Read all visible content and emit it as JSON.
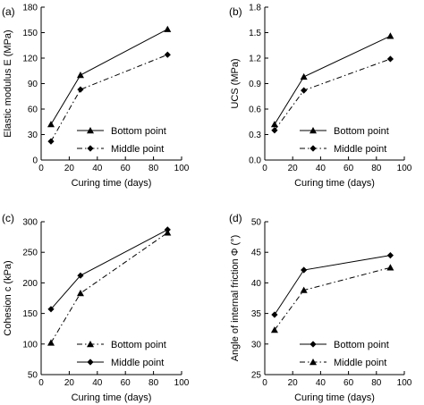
{
  "chart_data": [
    {
      "type": "line",
      "panel_label": "(a)",
      "xlabel": "Curing time (days)",
      "ylabel": "Elastic modulus E (MPa)",
      "xlim": [
        0,
        100
      ],
      "ylim": [
        0,
        180
      ],
      "xticks": [
        0,
        20,
        40,
        60,
        80,
        100
      ],
      "yticks": [
        0,
        30,
        60,
        90,
        120,
        150,
        180
      ],
      "ytick_labels": [
        "0",
        "30",
        "60",
        "90",
        "120",
        "150",
        "180"
      ],
      "legend_position": "bottom-right",
      "series": [
        {
          "name": "Bottom point",
          "marker": "triangle",
          "line": "solid",
          "x": [
            7,
            28,
            90
          ],
          "y": [
            42,
            100,
            154
          ]
        },
        {
          "name": "Middle point",
          "marker": "diamond",
          "line": "dashdot",
          "x": [
            7,
            28,
            90
          ],
          "y": [
            22,
            83,
            124
          ]
        }
      ]
    },
    {
      "type": "line",
      "panel_label": "(b)",
      "xlabel": "Curing time (days)",
      "ylabel": "UCS (MPa)",
      "xlim": [
        0,
        100
      ],
      "ylim": [
        0,
        1.8
      ],
      "xticks": [
        0,
        20,
        40,
        60,
        80,
        100
      ],
      "yticks": [
        0,
        0.3,
        0.6,
        0.9,
        1.2,
        1.5,
        1.8
      ],
      "ytick_labels": [
        "0.0",
        "0.3",
        "0.6",
        "0.9",
        "1.2",
        "1.5",
        "1.8"
      ],
      "legend_position": "bottom-right",
      "series": [
        {
          "name": "Bottom point",
          "marker": "triangle",
          "line": "solid",
          "x": [
            7,
            28,
            90
          ],
          "y": [
            0.42,
            0.98,
            1.46
          ]
        },
        {
          "name": "Middle point",
          "marker": "diamond",
          "line": "dashdot",
          "x": [
            7,
            28,
            90
          ],
          "y": [
            0.35,
            0.82,
            1.19
          ]
        }
      ]
    },
    {
      "type": "line",
      "panel_label": "(c)",
      "xlabel": "Curing time (days)",
      "ylabel": "Cohesion c (kPa)",
      "xlim": [
        0,
        100
      ],
      "ylim": [
        50,
        300
      ],
      "xticks": [
        0,
        20,
        40,
        60,
        80,
        100
      ],
      "yticks": [
        50,
        100,
        150,
        200,
        250,
        300
      ],
      "ytick_labels": [
        "50",
        "100",
        "150",
        "200",
        "250",
        "300"
      ],
      "legend_position": "bottom-right",
      "series": [
        {
          "name": "Bottom point",
          "marker": "triangle",
          "line": "dashdot",
          "x": [
            7,
            28,
            90
          ],
          "y": [
            102,
            183,
            282
          ]
        },
        {
          "name": "Middle point",
          "marker": "diamond",
          "line": "solid",
          "x": [
            7,
            28,
            90
          ],
          "y": [
            157,
            212,
            287
          ]
        }
      ]
    },
    {
      "type": "line",
      "panel_label": "(d)",
      "xlabel": "Curing time (days)",
      "ylabel": "Angle of internal friction Φ (°)",
      "xlim": [
        0,
        100
      ],
      "ylim": [
        25,
        50
      ],
      "xticks": [
        0,
        20,
        40,
        60,
        80,
        100
      ],
      "yticks": [
        25,
        30,
        35,
        40,
        45,
        50
      ],
      "ytick_labels": [
        "25",
        "30",
        "35",
        "40",
        "45",
        "50"
      ],
      "legend_position": "bottom-right",
      "series": [
        {
          "name": "Bottom point",
          "marker": "diamond",
          "line": "solid",
          "x": [
            7,
            28,
            90
          ],
          "y": [
            34.8,
            42.1,
            44.5
          ]
        },
        {
          "name": "Middle point",
          "marker": "triangle",
          "line": "dashdot",
          "x": [
            7,
            28,
            90
          ],
          "y": [
            32.3,
            38.8,
            42.5
          ]
        }
      ]
    }
  ]
}
